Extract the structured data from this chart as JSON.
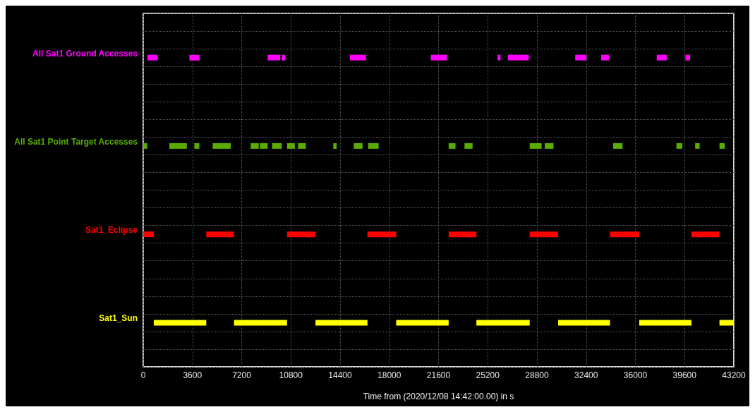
{
  "chart_data": {
    "type": "bar",
    "orientation": "horizontal",
    "xlabel": "Time from (2020/12/08 14:42:00.00) in s",
    "categories": [
      "All Sat1 Ground Accesses",
      "All Sat1 Point Target Accesses",
      "Sat1_Eclipse",
      "Sat1_Sun"
    ],
    "xlim": [
      0,
      43200
    ],
    "xticks": [
      0,
      3600,
      7200,
      10800,
      14400,
      18000,
      21600,
      25200,
      28800,
      32400,
      36000,
      39600,
      43200
    ],
    "grid": true,
    "series": [
      {
        "colors": [
          "#ff00ff",
          "#5aac00",
          "#ff0000",
          "#ffff00"
        ],
        "base": [
          310,
          0,
          0,
          770
        ],
        "values": [
          740,
          290,
          770,
          3840
        ]
      },
      {
        "colors": [
          "#ff00ff",
          "#5aac00",
          "#ff0000",
          "#ffff00"
        ],
        "base": [
          3370,
          1910,
          4610,
          6640
        ],
        "values": [
          750,
          1280,
          2030,
          3880
        ]
      },
      {
        "colors": [
          "#ff00ff",
          "#5aac00",
          "#ff0000",
          "#ffff00"
        ],
        "base": [
          9100,
          3740,
          10520,
          12600
        ],
        "values": [
          920,
          360,
          2080,
          3800
        ]
      },
      {
        "colors": [
          "#ff00ff",
          "#5aac00",
          "#ff0000",
          "#ffff00"
        ],
        "base": [
          10130,
          5080,
          16400,
          18500
        ],
        "values": [
          250,
          1320,
          2100,
          3840
        ]
      },
      {
        "colors": [
          "#ff00ff",
          "#5aac00",
          "#ff0000",
          "#ffff00"
        ],
        "base": [
          15120,
          7860,
          22340,
          24370
        ],
        "values": [
          1170,
          590,
          2030,
          3900
        ]
      },
      {
        "colors": [
          "#ff00ff",
          "#5aac00",
          "#ff0000",
          "#ffff00"
        ],
        "base": [
          21040,
          8530,
          28270,
          30350
        ],
        "values": [
          1170,
          570,
          2080,
          3790
        ]
      },
      {
        "colors": [
          "#ff00ff",
          "#5aac00",
          "#ff0000",
          "#ffff00"
        ],
        "base": [
          25920,
          9420,
          34140,
          36280
        ],
        "values": [
          210,
          710,
          2140,
          3820
        ]
      },
      {
        "colors": [
          "#ff00ff",
          "#5aac00",
          "#ff0000",
          "#ffff00"
        ],
        "base": [
          26670,
          10520,
          40100,
          42150
        ],
        "values": [
          1530,
          570,
          2050,
          1050
        ]
      },
      {
        "colors": [
          "#ff00ff",
          "#5aac00",
          null,
          null
        ],
        "base": [
          31600,
          11320,
          null,
          null
        ],
        "values": [
          810,
          570,
          null,
          null
        ]
      },
      {
        "colors": [
          "#ff00ff",
          "#5aac00",
          null,
          null
        ],
        "base": [
          33500,
          13900,
          null,
          null
        ],
        "values": [
          570,
          250,
          null,
          null
        ]
      },
      {
        "colors": [
          "#ff00ff",
          "#5aac00",
          null,
          null
        ],
        "base": [
          37560,
          15400,
          null,
          null
        ],
        "values": [
          730,
          640,
          null,
          null
        ]
      },
      {
        "colors": [
          "#ff00ff",
          "#5aac00",
          null,
          null
        ],
        "base": [
          39660,
          16450,
          null,
          null
        ],
        "values": [
          340,
          770,
          null,
          null
        ]
      },
      {
        "colors": [
          null,
          "#5aac00",
          null,
          null
        ],
        "base": [
          null,
          22340,
          null,
          null
        ],
        "values": [
          null,
          500,
          null,
          null
        ]
      },
      {
        "colors": [
          null,
          "#5aac00",
          null,
          null
        ],
        "base": [
          null,
          23500,
          null,
          null
        ],
        "values": [
          null,
          590,
          null,
          null
        ]
      },
      {
        "colors": [
          null,
          "#5aac00",
          null,
          null
        ],
        "base": [
          null,
          28270,
          null,
          null
        ],
        "values": [
          null,
          870,
          null,
          null
        ]
      },
      {
        "colors": [
          null,
          "#5aac00",
          null,
          null
        ],
        "base": [
          null,
          29370,
          null,
          null
        ],
        "values": [
          null,
          640,
          null,
          null
        ]
      },
      {
        "colors": [
          null,
          "#5aac00",
          null,
          null
        ],
        "base": [
          null,
          34370,
          null,
          null
        ],
        "values": [
          null,
          690,
          null,
          null
        ]
      },
      {
        "colors": [
          null,
          "#5aac00",
          null,
          null
        ],
        "base": [
          null,
          39000,
          null,
          null
        ],
        "values": [
          null,
          430,
          null,
          null
        ]
      },
      {
        "colors": [
          null,
          "#5aac00",
          null,
          null
        ],
        "base": [
          null,
          40370,
          null,
          null
        ],
        "values": [
          null,
          330,
          null,
          null
        ]
      },
      {
        "colors": [
          null,
          "#5aac00",
          null,
          null
        ],
        "base": [
          null,
          42150,
          null,
          null
        ],
        "values": [
          null,
          390,
          null,
          null
        ]
      }
    ]
  }
}
